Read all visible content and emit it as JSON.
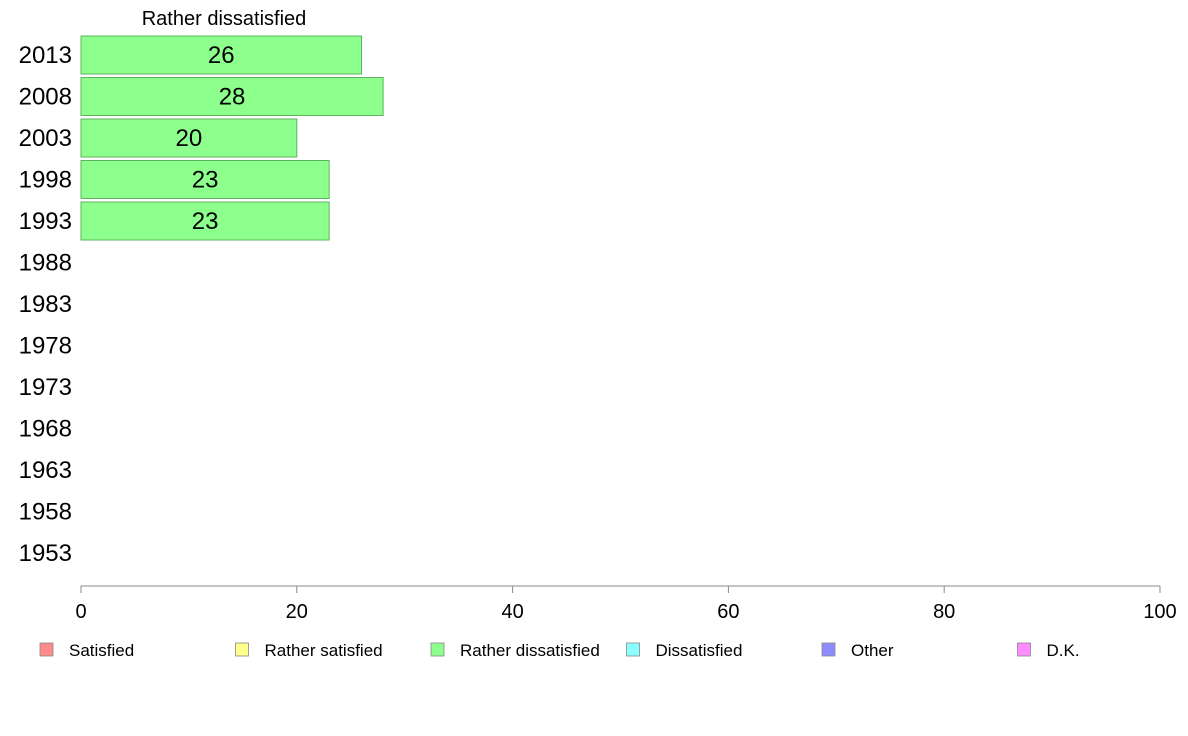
{
  "chart_data": {
    "type": "bar",
    "orientation": "horizontal",
    "title": "Rather dissatisfied",
    "categories": [
      "2013",
      "2008",
      "2003",
      "1998",
      "1993",
      "1988",
      "1983",
      "1978",
      "1973",
      "1968",
      "1963",
      "1958",
      "1953"
    ],
    "series": [
      {
        "name": "Rather dissatisfied",
        "values": [
          26,
          28,
          20,
          23,
          23,
          null,
          null,
          null,
          null,
          null,
          null,
          null,
          null
        ]
      }
    ],
    "value_labels": [
      "26",
      "28",
      "20",
      "23",
      "23"
    ],
    "xlim": [
      0,
      100
    ],
    "xticks": [
      "0",
      "20",
      "40",
      "60",
      "80",
      "100"
    ],
    "grid": false,
    "legend_position": "bottom",
    "legend": [
      {
        "label": "Satisfied",
        "color": "#ff8c8c"
      },
      {
        "label": "Rather satisfied",
        "color": "#ffff8c"
      },
      {
        "label": "Rather dissatisfied",
        "color": "#8cff8c"
      },
      {
        "label": "Dissatisfied",
        "color": "#8cffff"
      },
      {
        "label": "Other",
        "color": "#8c8cff"
      },
      {
        "label": "D.K.",
        "color": "#ff8cff"
      }
    ],
    "bar_color": "#8cff8c",
    "bar_border_color": "#5fb35f"
  }
}
